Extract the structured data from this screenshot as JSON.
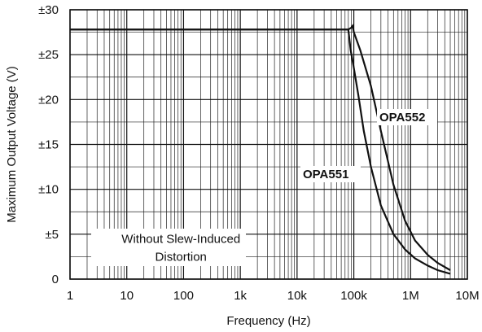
{
  "chart_data": {
    "type": "line",
    "xlabel": "Frequency (Hz)",
    "ylabel": "Maximum Output Voltage (V)",
    "x_scale": "log",
    "xlim": [
      1,
      10000000
    ],
    "ylim": [
      0,
      30
    ],
    "grid": true,
    "x_ticks": [
      {
        "value": 1,
        "label": "1"
      },
      {
        "value": 10,
        "label": "10"
      },
      {
        "value": 100,
        "label": "100"
      },
      {
        "value": 1000,
        "label": "1k"
      },
      {
        "value": 10000,
        "label": "10k"
      },
      {
        "value": 100000,
        "label": "100k"
      },
      {
        "value": 1000000,
        "label": "1M"
      },
      {
        "value": 10000000,
        "label": "10M"
      }
    ],
    "y_ticks": [
      {
        "value": 0,
        "label": "0"
      },
      {
        "value": 5,
        "label": "±5"
      },
      {
        "value": 10,
        "label": "±10"
      },
      {
        "value": 15,
        "label": "±15"
      },
      {
        "value": 20,
        "label": "±20"
      },
      {
        "value": 25,
        "label": "±25"
      },
      {
        "value": 30,
        "label": "±30"
      }
    ],
    "series": [
      {
        "name": "OPA551",
        "points": [
          [
            1,
            27.8
          ],
          [
            10,
            27.8
          ],
          [
            100,
            27.8
          ],
          [
            1000,
            27.8
          ],
          [
            10000,
            27.8
          ],
          [
            80000,
            27.8
          ],
          [
            88000,
            25.5
          ],
          [
            100000,
            23.5
          ],
          [
            120000,
            20.5
          ],
          [
            150000,
            16.5
          ],
          [
            200000,
            12.5
          ],
          [
            300000,
            8.2
          ],
          [
            500000,
            5.0
          ],
          [
            800000,
            3.3
          ],
          [
            1200000,
            2.3
          ],
          [
            2000000,
            1.5
          ],
          [
            3000000,
            1.0
          ],
          [
            5000000,
            0.6
          ]
        ]
      },
      {
        "name": "OPA552",
        "points": [
          [
            1,
            27.8
          ],
          [
            10,
            27.8
          ],
          [
            100,
            27.8
          ],
          [
            1000,
            27.8
          ],
          [
            10000,
            27.8
          ],
          [
            80000,
            27.8
          ],
          [
            90000,
            28.0
          ],
          [
            95000,
            28.2
          ],
          [
            100000,
            27.5
          ],
          [
            130000,
            25.5
          ],
          [
            200000,
            21.5
          ],
          [
            300000,
            16.5
          ],
          [
            500000,
            10.5
          ],
          [
            800000,
            6.5
          ],
          [
            1200000,
            4.3
          ],
          [
            2000000,
            2.7
          ],
          [
            3000000,
            1.8
          ],
          [
            5000000,
            1.0
          ]
        ]
      }
    ],
    "annotations": [
      {
        "text": "Without Slew-Induced",
        "x": 90,
        "y": 4.5
      },
      {
        "text": "Distortion",
        "x": 90,
        "y": 2.5
      }
    ]
  }
}
